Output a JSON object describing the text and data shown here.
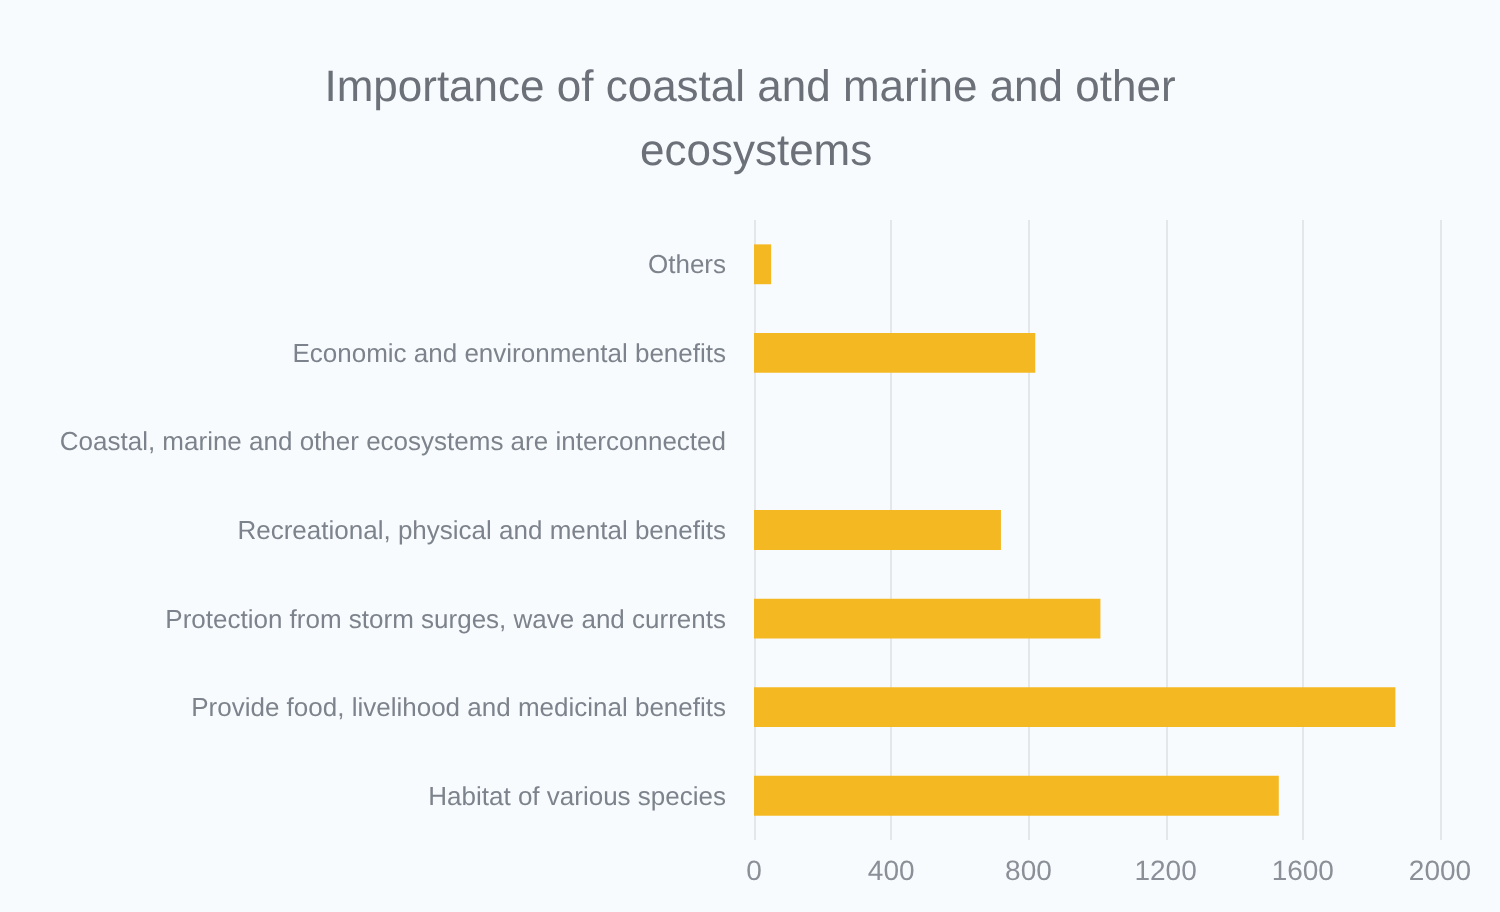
{
  "chart_data": {
    "type": "bar",
    "orientation": "horizontal",
    "title": "Importance of coastal and marine and other ecosystems",
    "categories": [
      "Others",
      "Economic and environmental benefits",
      "Coastal, marine and other ecosystems are interconnected",
      "Recreational, physical and mental benefits",
      "Protection from storm surges, wave and currents",
      "Provide food, livelihood and medicinal benefits",
      "Habitat of various species"
    ],
    "values": [
      50,
      820,
      0,
      720,
      1010,
      1870,
      1530
    ],
    "color": "#f4b823",
    "xlim": [
      0,
      2000
    ],
    "xticks": [
      0,
      400,
      800,
      1200,
      1600,
      2000
    ],
    "grid": "x"
  }
}
